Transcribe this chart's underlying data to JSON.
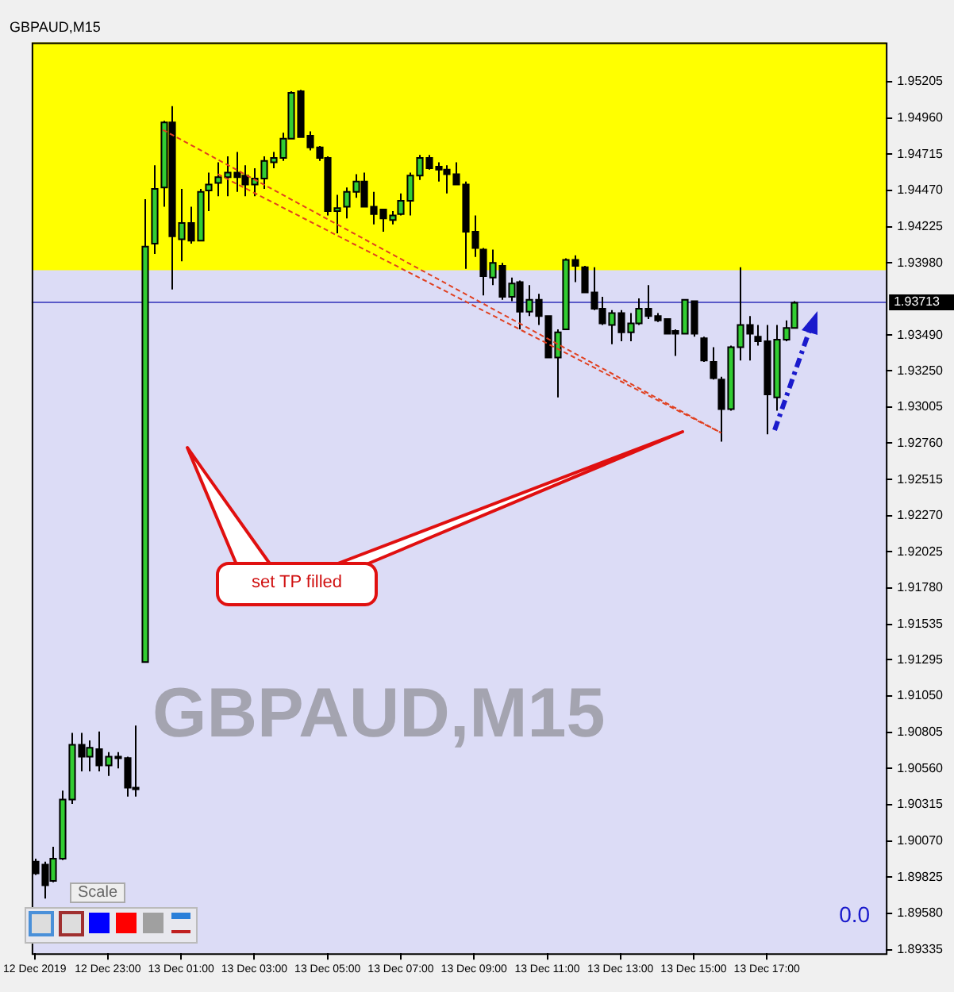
{
  "chart_data": {
    "type": "candlestick",
    "title": "GBPAUD,M15",
    "x": [
      "2019-12-12T21:00",
      "2019-12-12T21:15",
      "2019-12-12T21:30",
      "2019-12-12T21:45",
      "2019-12-12T22:00",
      "2019-12-12T22:15",
      "2019-12-12T22:30",
      "2019-12-12T22:45",
      "2019-12-12T23:00",
      "2019-12-12T23:15",
      "2019-12-12T23:30",
      "2019-12-12T23:45",
      "2019-12-13T00:00",
      "2019-12-13T00:15",
      "2019-12-13T00:30",
      "2019-12-13T00:45",
      "2019-12-13T01:00",
      "2019-12-13T01:15",
      "2019-12-13T01:30",
      "2019-12-13T01:45",
      "2019-12-13T02:00",
      "2019-12-13T02:15",
      "2019-12-13T02:30",
      "2019-12-13T02:45",
      "2019-12-13T03:00",
      "2019-12-13T03:15",
      "2019-12-13T03:30",
      "2019-12-13T03:45",
      "2019-12-13T04:00",
      "2019-12-13T04:15",
      "2019-12-13T04:30",
      "2019-12-13T04:45",
      "2019-12-13T05:00",
      "2019-12-13T05:15",
      "2019-12-13T05:30",
      "2019-12-13T05:45",
      "2019-12-13T06:00",
      "2019-12-13T06:15",
      "2019-12-13T06:30",
      "2019-12-13T06:45",
      "2019-12-13T07:00",
      "2019-12-13T07:15",
      "2019-12-13T07:30",
      "2019-12-13T07:45",
      "2019-12-13T08:00",
      "2019-12-13T08:15",
      "2019-12-13T08:30",
      "2019-12-13T08:45",
      "2019-12-13T09:00",
      "2019-12-13T09:15",
      "2019-12-13T09:30",
      "2019-12-13T09:45",
      "2019-12-13T10:00",
      "2019-12-13T10:15",
      "2019-12-13T10:30",
      "2019-12-13T10:45",
      "2019-12-13T11:00",
      "2019-12-13T11:15",
      "2019-12-13T11:30",
      "2019-12-13T11:45",
      "2019-12-13T12:00",
      "2019-12-13T12:15",
      "2019-12-13T12:30",
      "2019-12-13T12:45",
      "2019-12-13T13:00",
      "2019-12-13T13:15",
      "2019-12-13T13:30",
      "2019-12-13T13:45",
      "2019-12-13T14:00",
      "2019-12-13T14:15",
      "2019-12-13T14:30",
      "2019-12-13T14:45",
      "2019-12-13T15:00",
      "2019-12-13T15:15",
      "2019-12-13T15:30",
      "2019-12-13T15:45",
      "2019-12-13T16:00",
      "2019-12-13T16:15",
      "2019-12-13T16:30",
      "2019-12-13T16:45",
      "2019-12-13T17:00",
      "2019-12-13T17:15",
      "2019-12-13T17:30",
      "2019-12-13T17:45"
    ],
    "ohlc": [
      [
        1.8993,
        1.8995,
        1.8984,
        1.8985
      ],
      [
        1.8991,
        1.8993,
        1.8968,
        1.8977
      ],
      [
        1.898,
        1.9003,
        1.8979,
        1.8995
      ],
      [
        1.8995,
        1.9041,
        1.8994,
        1.9035
      ],
      [
        1.9035,
        1.908,
        1.9032,
        1.9072
      ],
      [
        1.9072,
        1.908,
        1.9054,
        1.9064
      ],
      [
        1.9064,
        1.9075,
        1.9054,
        1.907
      ],
      [
        1.9069,
        1.9081,
        1.9054,
        1.9058
      ],
      [
        1.9058,
        1.9067,
        1.9051,
        1.9064
      ],
      [
        1.9064,
        1.9067,
        1.9056,
        1.9064
      ],
      [
        1.9063,
        1.9064,
        1.9037,
        1.9043
      ],
      [
        1.9043,
        1.9085,
        1.9037,
        1.9043
      ],
      [
        1.9128,
        1.9441,
        1.9128,
        1.9409
      ],
      [
        1.9411,
        1.9464,
        1.9404,
        1.9448
      ],
      [
        1.9449,
        1.9494,
        1.9436,
        1.9493
      ],
      [
        1.9493,
        1.9504,
        1.938,
        1.9416
      ],
      [
        1.9414,
        1.9448,
        1.9399,
        1.9425
      ],
      [
        1.9425,
        1.9436,
        1.9411,
        1.9413
      ],
      [
        1.9413,
        1.9448,
        1.9413,
        1.9446
      ],
      [
        1.9447,
        1.9459,
        1.9433,
        1.9451
      ],
      [
        1.9452,
        1.9466,
        1.9443,
        1.9456
      ],
      [
        1.9456,
        1.947,
        1.9443,
        1.9459
      ],
      [
        1.9459,
        1.9473,
        1.9446,
        1.9456
      ],
      [
        1.9457,
        1.9464,
        1.9443,
        1.9451
      ],
      [
        1.9451,
        1.9462,
        1.9443,
        1.9455
      ],
      [
        1.9455,
        1.947,
        1.9448,
        1.9467
      ],
      [
        1.9466,
        1.9473,
        1.9462,
        1.9469
      ],
      [
        1.9469,
        1.9486,
        1.9467,
        1.9482
      ],
      [
        1.9482,
        1.9514,
        1.9482,
        1.9513
      ],
      [
        1.9514,
        1.9515,
        1.9483,
        1.9483
      ],
      [
        1.9484,
        1.9487,
        1.9474,
        1.9476
      ],
      [
        1.9476,
        1.9477,
        1.9467,
        1.9469
      ],
      [
        1.9469,
        1.947,
        1.943,
        1.9433
      ],
      [
        1.9433,
        1.9444,
        1.9418,
        1.9435
      ],
      [
        1.9436,
        1.9449,
        1.9428,
        1.9446
      ],
      [
        1.9446,
        1.9458,
        1.9442,
        1.9453
      ],
      [
        1.9453,
        1.9459,
        1.9436,
        1.9436
      ],
      [
        1.9436,
        1.9446,
        1.9424,
        1.9431
      ],
      [
        1.9434,
        1.9434,
        1.9419,
        1.9428
      ],
      [
        1.9427,
        1.9433,
        1.9424,
        1.943
      ],
      [
        1.9431,
        1.9445,
        1.943,
        1.944
      ],
      [
        1.944,
        1.9459,
        1.943,
        1.9457
      ],
      [
        1.9457,
        1.9471,
        1.9454,
        1.9469
      ],
      [
        1.9469,
        1.9471,
        1.9461,
        1.9462
      ],
      [
        1.9463,
        1.9466,
        1.9453,
        1.9461
      ],
      [
        1.9461,
        1.9464,
        1.9445,
        1.9458
      ],
      [
        1.9458,
        1.9466,
        1.9451,
        1.9451
      ],
      [
        1.9451,
        1.9453,
        1.9394,
        1.9419
      ],
      [
        1.9419,
        1.943,
        1.9402,
        1.9408
      ],
      [
        1.9407,
        1.9408,
        1.9376,
        1.9389
      ],
      [
        1.9388,
        1.9407,
        1.9383,
        1.9398
      ],
      [
        1.9396,
        1.9398,
        1.9373,
        1.9375
      ],
      [
        1.9375,
        1.9388,
        1.9372,
        1.9384
      ],
      [
        1.9385,
        1.9386,
        1.9353,
        1.9365
      ],
      [
        1.9365,
        1.9383,
        1.9362,
        1.9373
      ],
      [
        1.9373,
        1.9377,
        1.9356,
        1.9362
      ],
      [
        1.9362,
        1.9362,
        1.9334,
        1.9334
      ],
      [
        1.9334,
        1.9353,
        1.9307,
        1.9351
      ],
      [
        1.9353,
        1.9401,
        1.9353,
        1.94
      ],
      [
        1.94,
        1.9403,
        1.9385,
        1.9396
      ],
      [
        1.9395,
        1.9396,
        1.9378,
        1.9378
      ],
      [
        1.9378,
        1.9395,
        1.9366,
        1.9367
      ],
      [
        1.9367,
        1.9375,
        1.9356,
        1.9357
      ],
      [
        1.9356,
        1.9366,
        1.9343,
        1.9364
      ],
      [
        1.9364,
        1.9366,
        1.9345,
        1.9351
      ],
      [
        1.9351,
        1.9364,
        1.9345,
        1.9357
      ],
      [
        1.9357,
        1.9374,
        1.9356,
        1.9367
      ],
      [
        1.9367,
        1.9383,
        1.936,
        1.9362
      ],
      [
        1.9362,
        1.9364,
        1.9358,
        1.9359
      ],
      [
        1.936,
        1.936,
        1.935,
        1.935
      ],
      [
        1.9352,
        1.9353,
        1.9335,
        1.935
      ],
      [
        1.935,
        1.9373,
        1.935,
        1.9373
      ],
      [
        1.9372,
        1.9372,
        1.9348,
        1.935
      ],
      [
        1.9347,
        1.9348,
        1.9331,
        1.9332
      ],
      [
        1.9331,
        1.9341,
        1.9319,
        1.932
      ],
      [
        1.9319,
        1.9321,
        1.9277,
        1.9299
      ],
      [
        1.9299,
        1.9342,
        1.9298,
        1.9341
      ],
      [
        1.9341,
        1.9395,
        1.9332,
        1.9356
      ],
      [
        1.9356,
        1.9362,
        1.9332,
        1.935
      ],
      [
        1.9348,
        1.9356,
        1.9342,
        1.9345
      ],
      [
        1.9345,
        1.9356,
        1.9282,
        1.9309
      ],
      [
        1.9307,
        1.9356,
        1.9298,
        1.9346
      ],
      [
        1.9346,
        1.9359,
        1.9345,
        1.9354
      ],
      [
        1.9354,
        1.9372,
        1.9354,
        1.9371
      ]
    ],
    "series": [
      {
        "type": "line",
        "x": [
          "2019-12-13T00:30",
          "2019-12-13T15:45"
        ],
        "values": [
          1.9488,
          1.9283
        ],
        "color": "#e04020",
        "line_style": "dashed"
      },
      {
        "type": "line",
        "x": [
          "2019-12-13T02:00",
          "2019-12-13T15:45"
        ],
        "values": [
          1.9458,
          1.9283
        ],
        "color": "#e04020",
        "line_style": "dashed"
      }
    ],
    "xlim": [
      "2019-12-12T20:55",
      "2019-12-13T20:15"
    ],
    "xticks": [
      {
        "value": "2019-12-12T21:00",
        "label": "12 Dec 2019"
      },
      {
        "value": "2019-12-12T23:00",
        "label": "12 Dec 23:00"
      },
      {
        "value": "2019-12-13T01:00",
        "label": "13 Dec 01:00"
      },
      {
        "value": "2019-12-13T03:00",
        "label": "13 Dec 03:00"
      },
      {
        "value": "2019-12-13T05:00",
        "label": "13 Dec 05:00"
      },
      {
        "value": "2019-12-13T07:00",
        "label": "13 Dec 07:00"
      },
      {
        "value": "2019-12-13T09:00",
        "label": "13 Dec 09:00"
      },
      {
        "value": "2019-12-13T11:00",
        "label": "13 Dec 11:00"
      },
      {
        "value": "2019-12-13T13:00",
        "label": "13 Dec 13:00"
      },
      {
        "value": "2019-12-13T15:00",
        "label": "13 Dec 15:00"
      },
      {
        "value": "2019-12-13T17:00",
        "label": "13 Dec 17:00"
      }
    ],
    "ylim": [
      1.8931,
      1.9547
    ],
    "yticks": [
      1.95205,
      {
        "value": 1.9496,
        "label": "1.94960"
      },
      1.94715,
      {
        "value": 1.9447,
        "label": "1.94470"
      },
      1.94225,
      {
        "value": 1.9398,
        "label": "1.93980"
      },
      {
        "value": 1.9349,
        "label": "1.93490"
      },
      {
        "value": 1.9325,
        "label": "1.93250"
      },
      1.93005,
      {
        "value": 1.9276,
        "label": "1.92760"
      },
      1.92515,
      {
        "value": 1.9227,
        "label": "1.92270"
      },
      1.92025,
      {
        "value": 1.9178,
        "label": "1.91780"
      },
      1.91535,
      1.91295,
      {
        "value": 1.9105,
        "label": "1.91050"
      },
      1.90805,
      {
        "value": 1.9056,
        "label": "1.90560"
      },
      1.90315,
      {
        "value": 1.9007,
        "label": "1.90070"
      },
      1.89825,
      {
        "value": 1.8958,
        "label": "1.89580"
      },
      1.89335
    ],
    "bands": [
      {
        "axis": "y",
        "from": 1.9393,
        "to": 1.9547,
        "color": "#ffff00"
      }
    ],
    "ref_lines": [
      {
        "axis": "y",
        "value": 1.93713,
        "label": "1.93713",
        "color": "#5a5ac8"
      }
    ],
    "annotations": [
      "GBPAUD,M15",
      "set TP filled",
      "Scale",
      "0.0"
    ]
  }
}
